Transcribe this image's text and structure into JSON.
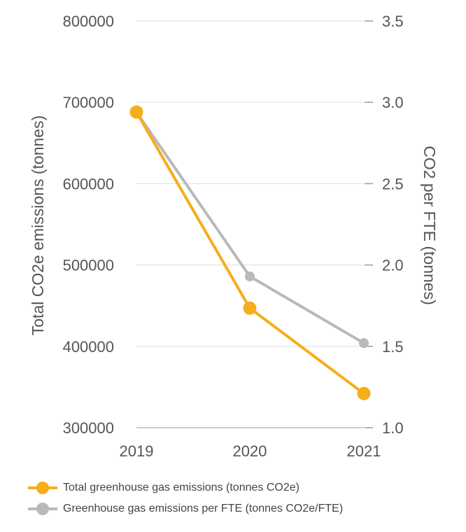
{
  "chart_data": {
    "type": "line",
    "title": "",
    "x": [
      "2019",
      "2020",
      "2021"
    ],
    "y_left": {
      "label": "Total CO2e emissions (tonnes)",
      "lim": [
        300000,
        800000
      ],
      "ticks": [
        "300000",
        "400000",
        "500000",
        "600000",
        "700000",
        "800000"
      ],
      "grid": true
    },
    "y_right": {
      "label": "CO2 per FTE (tonnes)",
      "lim": [
        1.0,
        3.5
      ],
      "ticks": [
        "1.0",
        "1.5",
        "2.0",
        "2.5",
        "3.0",
        "3.5"
      ]
    },
    "series": [
      {
        "name": "Total greenhouse gas emissions (tonnes CO2e)",
        "axis": "left",
        "color": "#F5AE1A",
        "values": [
          688000,
          447000,
          342000
        ]
      },
      {
        "name": "Greenhouse gas emissions per FTE (tonnes CO2e/FTE)",
        "axis": "right",
        "color": "#B9B9B9",
        "values": [
          2.94,
          1.93,
          1.52
        ]
      }
    ],
    "legend_position": "bottom-left"
  }
}
